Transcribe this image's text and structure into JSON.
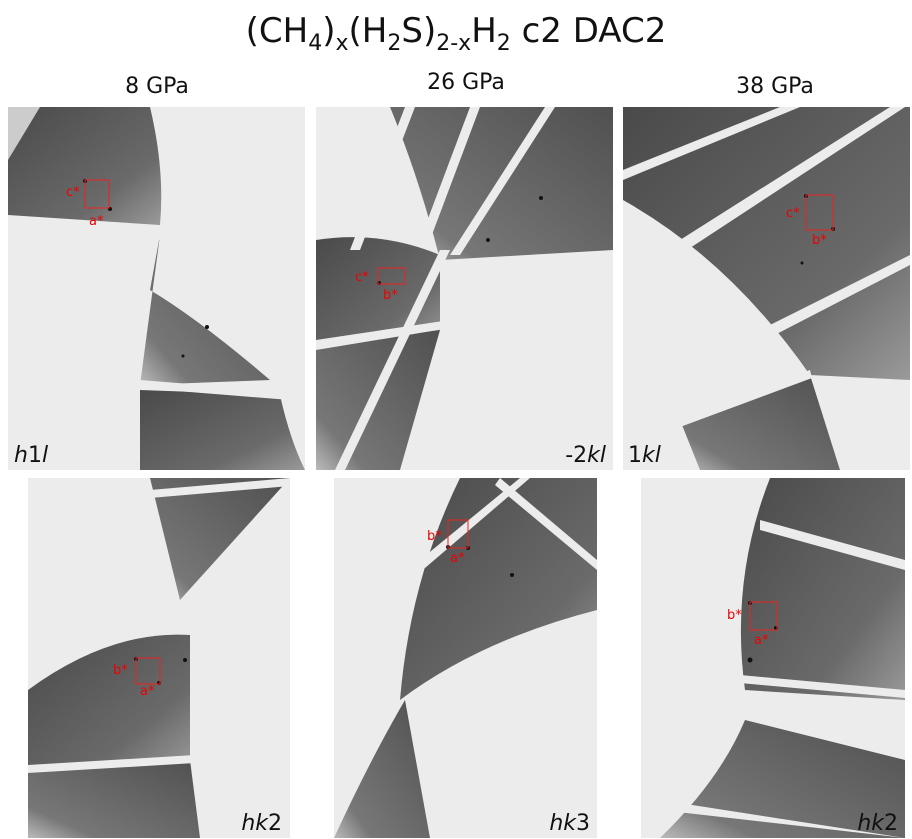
{
  "title": {
    "parts": [
      "(CH",
      "4",
      ")",
      "x",
      "(H",
      "2",
      "S)",
      "2-x",
      "H",
      "2",
      " c2 DAC2"
    ]
  },
  "columns": [
    "8 GPa",
    "26 GPa",
    "38 GPa"
  ],
  "panels": [
    {
      "label": [
        "h",
        "1",
        "l"
      ],
      "axes": [
        "c*",
        "a*"
      ]
    },
    {
      "label": [
        "-2",
        "kl"
      ],
      "axes": [
        "c*",
        "b*"
      ]
    },
    {
      "label": [
        "1",
        "kl"
      ],
      "axes": [
        "c*",
        "b*"
      ]
    },
    {
      "label": [
        "hk",
        "2"
      ],
      "axes": [
        "b*",
        "a*"
      ]
    },
    {
      "label": [
        "hk",
        "3"
      ],
      "axes": [
        "b*",
        "a*"
      ]
    },
    {
      "label": [
        "hk",
        "2"
      ],
      "axes": [
        "b*",
        "a*"
      ]
    }
  ]
}
